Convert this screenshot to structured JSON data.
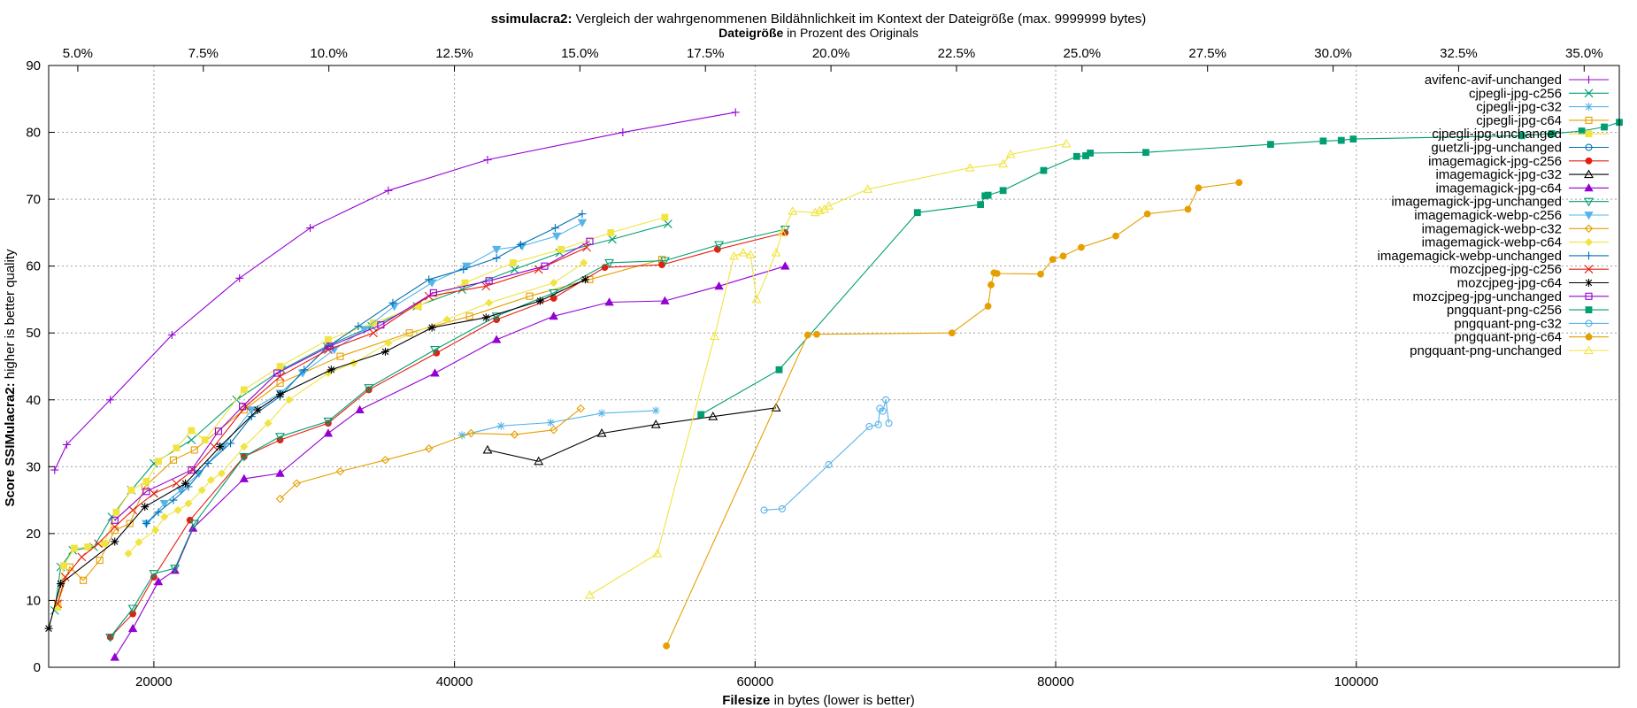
{
  "chart_data": {
    "type": "line",
    "title_bold": "ssimulacra2:",
    "title_rest": " Vergleich der wahrgenommenen Bildähnlichkeit im Kontext der Dateigröße (max. 9999999 bytes)",
    "x2label_bold": "Dateigröße",
    "x2label_rest": " in Prozent des Originals",
    "xlabel_bold": "Filesize",
    "xlabel_rest": " in bytes (lower is better)",
    "ylabel_bold": "Score SSIMulacra2:",
    "ylabel_rest": " higher is better quality",
    "xlim": [
      13000,
      117500
    ],
    "ylim": [
      0,
      90
    ],
    "x2lim": [
      4.42,
      35.7
    ],
    "xticks": [
      20000,
      40000,
      60000,
      80000,
      100000
    ],
    "yticks": [
      0,
      10,
      20,
      30,
      40,
      50,
      60,
      70,
      80,
      90
    ],
    "x2ticks": [
      5,
      7.5,
      10,
      12.5,
      15,
      17.5,
      20,
      22.5,
      25,
      27.5,
      30,
      32.5,
      35
    ],
    "x2tick_labels": [
      "5.0%",
      "7.5%",
      "10.0%",
      "12.5%",
      "15.0%",
      "17.5%",
      "20.0%",
      "22.5%",
      "25.0%",
      "27.5%",
      "30.0%",
      "32.5%",
      "35.0%"
    ],
    "grid": true,
    "legend_position": "top-right",
    "series": [
      {
        "name": "avifenc-avif-unchanged",
        "color": "#9400d3",
        "marker": "plus",
        "x": [
          13400,
          14200,
          17100,
          21200,
          25700,
          30400,
          35600,
          42200,
          51200,
          58700
        ],
        "y": [
          29.5,
          33.3,
          40.0,
          49.7,
          58.2,
          65.7,
          71.3,
          75.9,
          80.0,
          83.0
        ]
      },
      {
        "name": "cjpegli-jpg-c256",
        "color": "#009e73",
        "marker": "x",
        "x": [
          13400,
          13800,
          14600,
          16000,
          17200,
          18500,
          20000,
          22500,
          25500,
          28500,
          31500,
          34500,
          37500,
          40500,
          44000,
          47000,
          50500,
          54200
        ],
        "y": [
          8.5,
          15.0,
          17.5,
          18.0,
          22.5,
          26.5,
          30.5,
          34.0,
          40.0,
          44.5,
          48.0,
          51.0,
          54.0,
          56.5,
          59.5,
          62.0,
          64.0,
          66.3
        ]
      },
      {
        "name": "cjpegli-jpg-c32",
        "color": "#56b4e9",
        "marker": "star",
        "x": [
          40500,
          43100,
          46400,
          49800,
          53400
        ],
        "y": [
          34.7,
          36.1,
          36.6,
          38.0,
          38.4
        ]
      },
      {
        "name": "cjpegli-jpg-c64",
        "color": "#e69f00",
        "marker": "square-open",
        "x": [
          13600,
          14400,
          15300,
          16400,
          17400,
          18400,
          19400,
          21300,
          22700,
          26000,
          28400,
          32400,
          37000,
          41000,
          45000,
          49000,
          53800
        ],
        "y": [
          9.5,
          15.0,
          13.0,
          16.0,
          20.5,
          21.5,
          27.0,
          31.0,
          32.5,
          38.5,
          42.5,
          46.5,
          50.0,
          52.5,
          55.5,
          58.0,
          61.0
        ]
      },
      {
        "name": "cjpegli-jpg-unchanged",
        "color": "#f0e442",
        "marker": "square-filled",
        "x": [
          13600,
          14000,
          14700,
          15600,
          16700,
          17500,
          18500,
          19500,
          20300,
          21500,
          22500,
          23400,
          26000,
          28400,
          31600,
          34600,
          37600,
          40700,
          43900,
          47100,
          50400,
          54000
        ],
        "y": [
          9.0,
          15.2,
          17.8,
          18.0,
          18.5,
          23.2,
          26.5,
          27.8,
          30.8,
          32.8,
          35.4,
          34.0,
          41.5,
          45.0,
          49.0,
          51.5,
          54.0,
          57.5,
          60.5,
          62.5,
          65.0,
          67.3
        ]
      },
      {
        "name": "guetzli-jpg-unchanged",
        "color": "#0072b2",
        "marker": "circle-open",
        "x": [],
        "y": []
      },
      {
        "name": "imagemagick-jpg-c256",
        "color": "#e51e10",
        "marker": "circle-filled",
        "x": [
          17100,
          18600,
          20000,
          22400,
          26000,
          28400,
          31600,
          34300,
          38800,
          42800,
          46600,
          50000,
          53800,
          57500,
          62000
        ],
        "y": [
          4.5,
          8.0,
          13.5,
          22.0,
          31.5,
          34.0,
          36.5,
          41.5,
          47.0,
          52.0,
          55.2,
          59.8,
          60.2,
          62.5,
          65.0
        ]
      },
      {
        "name": "imagemagick-jpg-c32",
        "color": "#000000",
        "marker": "triangle-open",
        "x": [
          42200,
          45600,
          49800,
          53400,
          57200,
          61400
        ],
        "y": [
          32.5,
          30.8,
          35.0,
          36.3,
          37.5,
          38.8
        ]
      },
      {
        "name": "imagemagick-jpg-c64",
        "color": "#9400d3",
        "marker": "triangle-filled",
        "x": [
          17400,
          18600,
          20300,
          21400,
          22600,
          26000,
          28400,
          31600,
          33700,
          38700,
          42800,
          46600,
          50300,
          54000,
          57600,
          62000
        ],
        "y": [
          1.5,
          5.8,
          12.8,
          14.5,
          20.8,
          28.2,
          29.0,
          35.0,
          38.5,
          44.0,
          49.0,
          52.5,
          54.6,
          54.8,
          57.0,
          60.0
        ]
      },
      {
        "name": "imagemagick-jpg-unchanged",
        "color": "#009e73",
        "marker": "triangle-down-open",
        "x": [
          17100,
          18600,
          20000,
          21400,
          22700,
          26000,
          28400,
          31600,
          34300,
          38700,
          42800,
          46600,
          50300,
          54000,
          57600,
          62000
        ],
        "y": [
          4.5,
          8.8,
          14.0,
          14.8,
          21.5,
          31.5,
          34.5,
          36.8,
          41.8,
          47.5,
          52.5,
          56.0,
          60.5,
          60.8,
          63.2,
          65.5
        ]
      },
      {
        "name": "imagemagick-webp-c256",
        "color": "#56b4e9",
        "marker": "triangle-down-filled",
        "x": [
          19500,
          20700,
          21800,
          23000,
          24600,
          26500,
          28400,
          29900,
          32000,
          34000,
          36000,
          38500,
          40800,
          42800,
          44500,
          46800,
          48500
        ],
        "y": [
          21.5,
          24.5,
          26.5,
          29.0,
          33.0,
          38.5,
          41.0,
          44.0,
          47.5,
          50.5,
          54.0,
          57.5,
          60.0,
          62.5,
          63.0,
          64.5,
          66.5
        ]
      },
      {
        "name": "imagemagick-webp-c32",
        "color": "#e69f00",
        "marker": "diamond-open",
        "x": [
          28400,
          29500,
          32400,
          35400,
          38300,
          41100,
          44000,
          46600,
          48400
        ],
        "y": [
          25.2,
          27.5,
          29.3,
          31.0,
          32.7,
          35.0,
          34.8,
          35.5,
          38.7
        ]
      },
      {
        "name": "imagemagick-webp-c64",
        "color": "#f0e442",
        "marker": "diamond-filled",
        "x": [
          18300,
          19000,
          20100,
          20700,
          21600,
          22300,
          23200,
          23800,
          24500,
          26000,
          27600,
          29000,
          31600,
          33300,
          35600,
          39500,
          42300,
          46600,
          48600
        ],
        "y": [
          17.0,
          18.7,
          20.5,
          22.5,
          23.5,
          24.5,
          26.5,
          28.0,
          29.0,
          33.0,
          36.5,
          40.0,
          44.0,
          45.5,
          48.5,
          52.0,
          54.5,
          57.5,
          60.5
        ]
      },
      {
        "name": "imagemagick-webp-unchanged",
        "color": "#0072b2",
        "marker": "plus",
        "x": [
          19500,
          20300,
          21300,
          22300,
          23600,
          25100,
          26500,
          28400,
          30000,
          31600,
          33600,
          35900,
          38300,
          40600,
          42800,
          44400,
          46700,
          48500
        ],
        "y": [
          21.5,
          23.2,
          25.0,
          27.0,
          30.5,
          33.5,
          37.5,
          40.5,
          44.5,
          48.0,
          51.0,
          54.5,
          58.0,
          59.5,
          61.2,
          63.2,
          65.7,
          67.8
        ]
      },
      {
        "name": "mozcjpeg-jpg-c256",
        "color": "#e51e10",
        "marker": "x",
        "x": [
          13600,
          14100,
          15200,
          16300,
          17400,
          18600,
          20000,
          21500,
          22600,
          24000,
          26100,
          28400,
          31600,
          34600,
          38300,
          42100,
          45600,
          48800
        ],
        "y": [
          9.5,
          13.5,
          16.5,
          18.5,
          21.0,
          23.5,
          26.0,
          27.5,
          29.5,
          33.0,
          39.0,
          43.5,
          47.5,
          50.0,
          55.5,
          57.0,
          59.5,
          62.8
        ]
      },
      {
        "name": "mozcjpeg-jpg-c64",
        "color": "#000000",
        "marker": "star",
        "x": [
          13000,
          13800,
          17400,
          19400,
          22100,
          24400,
          26900,
          28400,
          31800,
          35400,
          38500,
          42100,
          45700,
          48700
        ],
        "y": [
          5.8,
          12.5,
          18.8,
          24.0,
          27.5,
          33.0,
          38.5,
          40.8,
          44.5,
          47.2,
          50.8,
          52.3,
          54.8,
          58.0
        ]
      },
      {
        "name": "mozcjpeg-jpg-unchanged",
        "color": "#9400d3",
        "marker": "square-open",
        "x": [
          17400,
          19500,
          22500,
          24300,
          25900,
          28200,
          31700,
          35100,
          38600,
          42300,
          46000,
          49000
        ],
        "y": [
          22.0,
          26.3,
          29.5,
          35.3,
          39.0,
          44.0,
          48.0,
          51.2,
          56.0,
          57.8,
          60.0,
          63.7
        ]
      },
      {
        "name": "pngquant-png-c256",
        "color": "#009e73",
        "marker": "square-filled",
        "x": [
          56400,
          61600,
          70800,
          75000,
          75300,
          75500,
          76500,
          79200,
          81400,
          82000,
          82300,
          86000,
          94300,
          97800,
          99000,
          99800,
          111000,
          113000,
          115000,
          116500,
          117500
        ],
        "y": [
          37.8,
          44.5,
          68.0,
          69.2,
          70.5,
          70.6,
          71.3,
          74.3,
          76.4,
          76.5,
          76.9,
          77.0,
          78.2,
          78.7,
          78.8,
          79.0,
          79.5,
          79.8,
          80.2,
          80.8,
          81.5
        ]
      },
      {
        "name": "pngquant-png-c32",
        "color": "#56b4e9",
        "marker": "circle-open",
        "x": [
          60600,
          61800,
          64900,
          67600,
          68200,
          68300,
          68500,
          68700,
          68900
        ],
        "y": [
          23.5,
          23.7,
          30.3,
          36.0,
          36.3,
          38.7,
          38.3,
          40.0,
          36.5
        ]
      },
      {
        "name": "pngquant-png-c64",
        "color": "#e69f00",
        "marker": "circle-filled",
        "x": [
          54100,
          63500,
          64100,
          73100,
          75500,
          75700,
          75900,
          76100,
          79000,
          79800,
          80500,
          81700,
          84000,
          86100,
          88800,
          89500,
          92200
        ],
        "y": [
          3.2,
          49.7,
          49.8,
          50.0,
          54.0,
          57.2,
          59.0,
          58.9,
          58.8,
          61.0,
          61.5,
          62.8,
          64.5,
          67.8,
          68.5,
          71.7,
          72.5
        ]
      },
      {
        "name": "pngquant-png-unchanged",
        "color": "#f0e442",
        "marker": "triangle-open",
        "x": [
          49000,
          53500,
          57300,
          58600,
          59200,
          59700,
          60100,
          61400,
          61800,
          62500,
          64000,
          64300,
          64600,
          64900,
          67500,
          74300,
          76500,
          77000,
          80700
        ],
        "y": [
          10.8,
          17.0,
          49.5,
          61.5,
          62.0,
          61.7,
          55.0,
          62.0,
          65.0,
          68.2,
          68.0,
          68.3,
          68.5,
          69.0,
          71.5,
          74.7,
          75.3,
          76.7,
          78.3
        ]
      }
    ]
  }
}
